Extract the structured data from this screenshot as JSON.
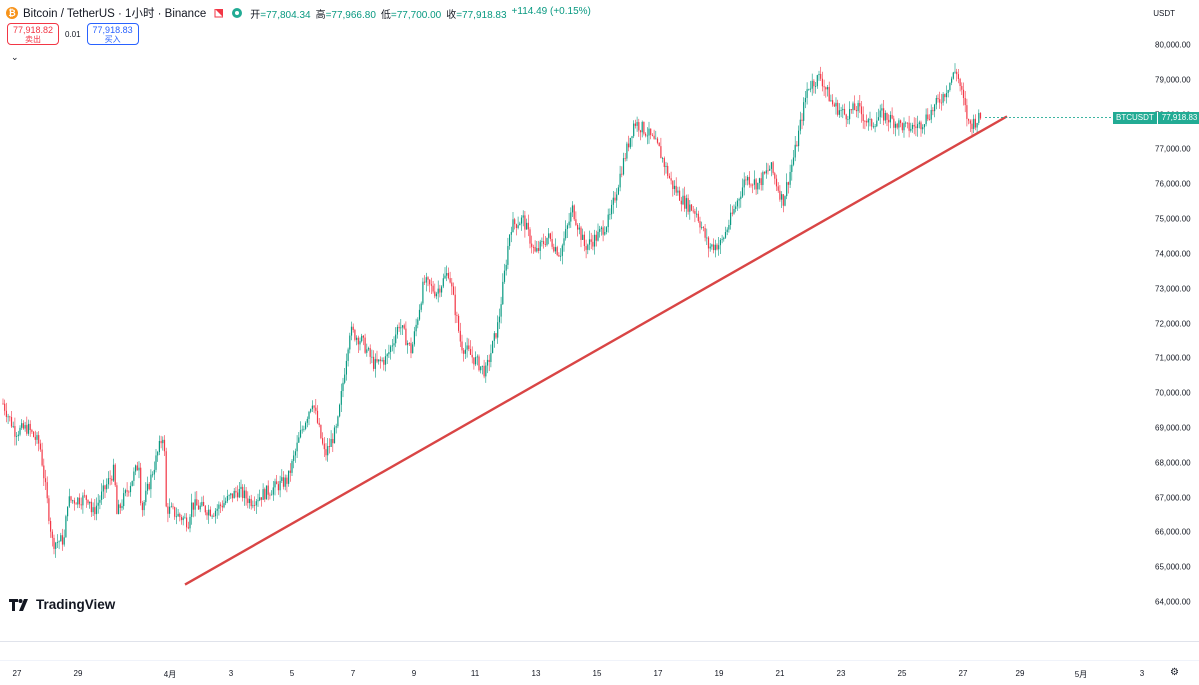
{
  "header": {
    "coin_glyph": "₿",
    "title": "Bitcoin / TetherUS · 1小时 · Binance",
    "ohlc": [
      {
        "label": "开",
        "value": "=77,804.34"
      },
      {
        "label": "高",
        "value": "=77,966.80"
      },
      {
        "label": "低",
        "value": "=77,700.00"
      },
      {
        "label": "收",
        "value": "=77,918.83"
      }
    ],
    "change": "+114.49 (+0.15%)"
  },
  "trade": {
    "sell_price": "77,918.82",
    "sell_label": "卖出",
    "spread": "0.01",
    "buy_price": "77,918.83",
    "buy_label": "买入"
  },
  "collapse_glyph": "⌄",
  "currency": "USDT",
  "price_badge": {
    "symbol": "BTCUSDT",
    "price": "77,918.83"
  },
  "branding": {
    "logo_text": "TradingView"
  },
  "settings_glyph": "⚙",
  "colors": {
    "up": "#089981",
    "down": "#f23645",
    "trendline": "#d94545",
    "badge": "#22ab94"
  },
  "chart_data": {
    "type": "candlestick",
    "y_ticks": [
      "80,000.00",
      "79,000.00",
      "78,000.00",
      "77,000.00",
      "76,000.00",
      "75,000.00",
      "74,000.00",
      "73,000.00",
      "72,000.00",
      "71,000.00",
      "70,000.00",
      "69,000.00",
      "68,000.00",
      "67,000.00",
      "66,000.00",
      "65,000.00",
      "64,000.00"
    ],
    "ylim": [
      63500,
      80700
    ],
    "x_ticks": [
      "27",
      "29",
      "4月",
      "3",
      "5",
      "7",
      "9",
      "11",
      "13",
      "15",
      "17",
      "19",
      "21",
      "23",
      "25",
      "27",
      "29",
      "5月",
      "3"
    ],
    "last_price": 77918.83,
    "trendline": {
      "start": {
        "date": "2024-04-01",
        "price": 64500
      },
      "end": {
        "date": "2024-04-28",
        "price": 77950
      }
    },
    "series": [
      {
        "date": "2024-03-26",
        "price": 69700
      },
      {
        "date": "2024-03-26",
        "price": 68900
      },
      {
        "date": "2024-03-27",
        "price": 69000
      },
      {
        "date": "2024-03-27",
        "price": 68500
      },
      {
        "date": "2024-03-28",
        "price": 65700
      },
      {
        "date": "2024-03-28",
        "price": 65800
      },
      {
        "date": "2024-03-28",
        "price": 66900
      },
      {
        "date": "2024-03-29",
        "price": 67000
      },
      {
        "date": "2024-03-29",
        "price": 66500
      },
      {
        "date": "2024-03-30",
        "price": 67800
      },
      {
        "date": "2024-03-30",
        "price": 66500
      },
      {
        "date": "2024-03-31",
        "price": 68000
      },
      {
        "date": "2024-03-31",
        "price": 66600
      },
      {
        "date": "2024-04-01",
        "price": 68900
      },
      {
        "date": "2024-04-01",
        "price": 66700
      },
      {
        "date": "2024-04-02",
        "price": 66300
      },
      {
        "date": "2024-04-02",
        "price": 66800
      },
      {
        "date": "2024-04-03",
        "price": 66600
      },
      {
        "date": "2024-04-04",
        "price": 66900
      },
      {
        "date": "2024-04-04",
        "price": 67200
      },
      {
        "date": "2024-04-05",
        "price": 66900
      },
      {
        "date": "2024-04-06",
        "price": 67500
      },
      {
        "date": "2024-04-07",
        "price": 68800
      },
      {
        "date": "2024-04-07",
        "price": 69800
      },
      {
        "date": "2024-04-08",
        "price": 68200
      },
      {
        "date": "2024-04-08",
        "price": 69000
      },
      {
        "date": "2024-04-09",
        "price": 71800
      },
      {
        "date": "2024-04-09",
        "price": 71500
      },
      {
        "date": "2024-04-10",
        "price": 70800
      },
      {
        "date": "2024-04-10",
        "price": 71000
      },
      {
        "date": "2024-04-11",
        "price": 72000
      },
      {
        "date": "2024-04-11",
        "price": 71200
      },
      {
        "date": "2024-04-12",
        "price": 73200
      },
      {
        "date": "2024-04-12",
        "price": 72900
      },
      {
        "date": "2024-04-13",
        "price": 73500
      },
      {
        "date": "2024-04-13",
        "price": 71400
      },
      {
        "date": "2024-04-14",
        "price": 71000
      },
      {
        "date": "2024-04-14",
        "price": 70600
      },
      {
        "date": "2024-04-15",
        "price": 72000
      },
      {
        "date": "2024-04-15",
        "price": 74800
      },
      {
        "date": "2024-04-16",
        "price": 75000
      },
      {
        "date": "2024-04-16",
        "price": 74000
      },
      {
        "date": "2024-04-17",
        "price": 74500
      },
      {
        "date": "2024-04-17",
        "price": 74000
      },
      {
        "date": "2024-04-18",
        "price": 75300
      },
      {
        "date": "2024-04-18",
        "price": 74200
      },
      {
        "date": "2024-04-19",
        "price": 74500
      },
      {
        "date": "2024-04-19",
        "price": 75000
      },
      {
        "date": "2024-04-20",
        "price": 76500
      },
      {
        "date": "2024-04-20",
        "price": 77800
      },
      {
        "date": "2024-04-21",
        "price": 77500
      },
      {
        "date": "2024-04-21",
        "price": 77000
      },
      {
        "date": "2024-04-22",
        "price": 76000
      },
      {
        "date": "2024-04-22",
        "price": 75500
      },
      {
        "date": "2024-04-23",
        "price": 75200
      },
      {
        "date": "2024-04-23",
        "price": 74200
      },
      {
        "date": "2024-04-24",
        "price": 74300
      },
      {
        "date": "2024-04-24",
        "price": 75200
      },
      {
        "date": "2024-04-25",
        "price": 76200
      },
      {
        "date": "2024-04-25",
        "price": 76000
      },
      {
        "date": "2024-04-26",
        "price": 76500
      },
      {
        "date": "2024-04-26",
        "price": 75500
      },
      {
        "date": "2024-04-27",
        "price": 77000
      },
      {
        "date": "2024-04-27",
        "price": 78800
      },
      {
        "date": "2024-04-28",
        "price": 79100
      },
      {
        "date": "2024-04-28",
        "price": 78300
      },
      {
        "date": "2024-04-29",
        "price": 78000
      },
      {
        "date": "2024-04-29",
        "price": 78200
      },
      {
        "date": "2024-04-30",
        "price": 77700
      },
      {
        "date": "2024-04-30",
        "price": 78000
      },
      {
        "date": "2024-05-01",
        "price": 77800
      },
      {
        "date": "2024-05-01",
        "price": 77600
      },
      {
        "date": "2024-05-02",
        "price": 77700
      },
      {
        "date": "2024-05-02",
        "price": 78100
      },
      {
        "date": "2024-05-03",
        "price": 78600
      },
      {
        "date": "2024-05-03",
        "price": 79300
      },
      {
        "date": "2024-05-04",
        "price": 77700
      },
      {
        "date": "2024-05-04",
        "price": 77918.83
      }
    ]
  }
}
